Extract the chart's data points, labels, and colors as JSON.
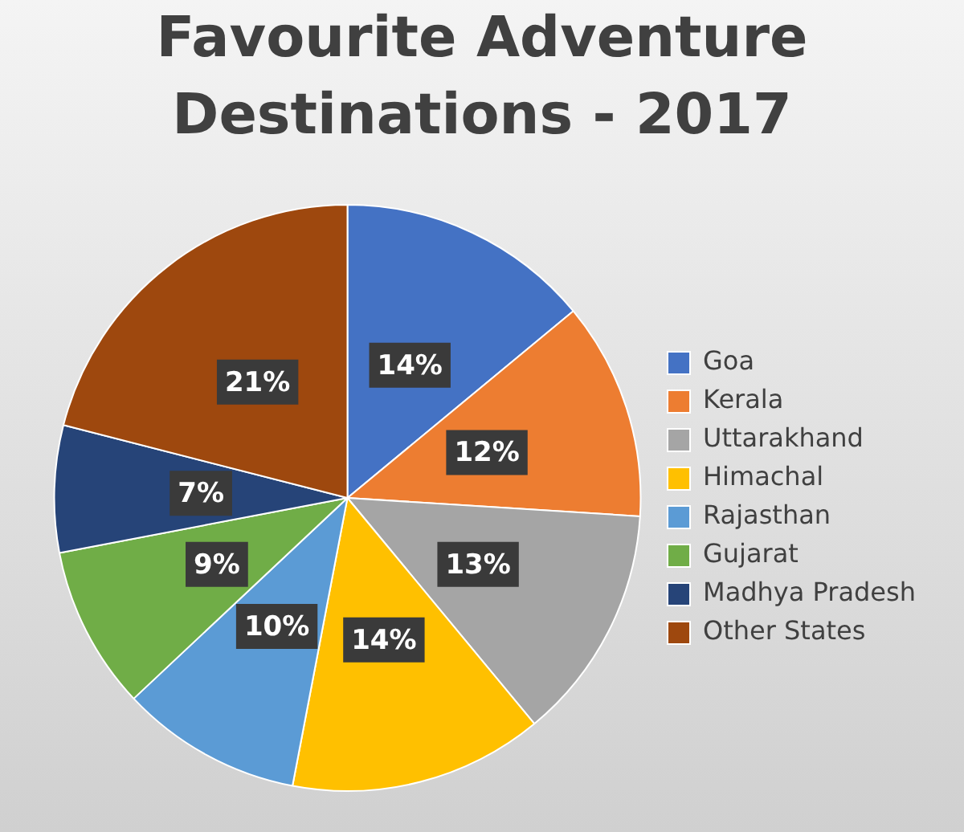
{
  "chart_data": {
    "type": "pie",
    "title": "Favourite Adventure Destinations - 2017",
    "categories": [
      "Goa",
      "Kerala",
      "Uttarakhand",
      "Himachal",
      "Rajasthan",
      "Gujarat",
      "Madhya Pradesh",
      "Other States"
    ],
    "values": [
      14,
      12,
      13,
      14,
      10,
      9,
      7,
      21
    ],
    "colors": [
      "#4472c4",
      "#ed7d31",
      "#a5a5a5",
      "#ffc000",
      "#5b9bd5",
      "#70ad47",
      "#264478",
      "#9e480e"
    ],
    "value_labels": [
      "14%",
      "12%",
      "13%",
      "14%",
      "10%",
      "9%",
      "7%",
      "21%"
    ],
    "legend": "right"
  }
}
